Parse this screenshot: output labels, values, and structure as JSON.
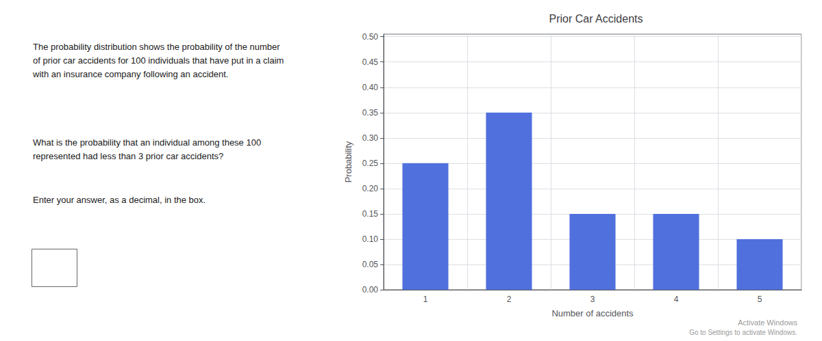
{
  "chart_data": {
    "type": "bar",
    "title": "Prior Car Accidents",
    "x_label": "Number of accidents",
    "y_label": "Probability",
    "categories": [
      1,
      2,
      3,
      4,
      5
    ],
    "values": [
      0.25,
      0.35,
      0.15,
      0.15,
      0.1
    ],
    "ylim": [
      0.0,
      0.505
    ],
    "yticks": [
      {
        "value": 0,
        "label": "0.00"
      },
      0.05,
      {
        "value": 0.1,
        "label": "0.10"
      },
      0.15,
      {
        "value": 0.2,
        "label": "0.20"
      },
      0.25,
      {
        "value": 0.3,
        "label": "0.30"
      },
      0.35,
      {
        "value": 0.4,
        "label": "0.40"
      },
      0.45,
      {
        "value": 0.5,
        "label": "0.50"
      }
    ],
    "grid": true,
    "annotations": [
      "The probability distribution shows the probability of the number\nof prior car accidents for 100 individuals that have put in a claim\nwith an insurance company following an accident.",
      "What is the probability that an individual among these 100\nrepresented had less than 3 prior car accidents?",
      "Enter your answer, as a decimal, in the box.",
      "Activate Windows",
      "Go to Settings to activate Windows."
    ]
  }
}
